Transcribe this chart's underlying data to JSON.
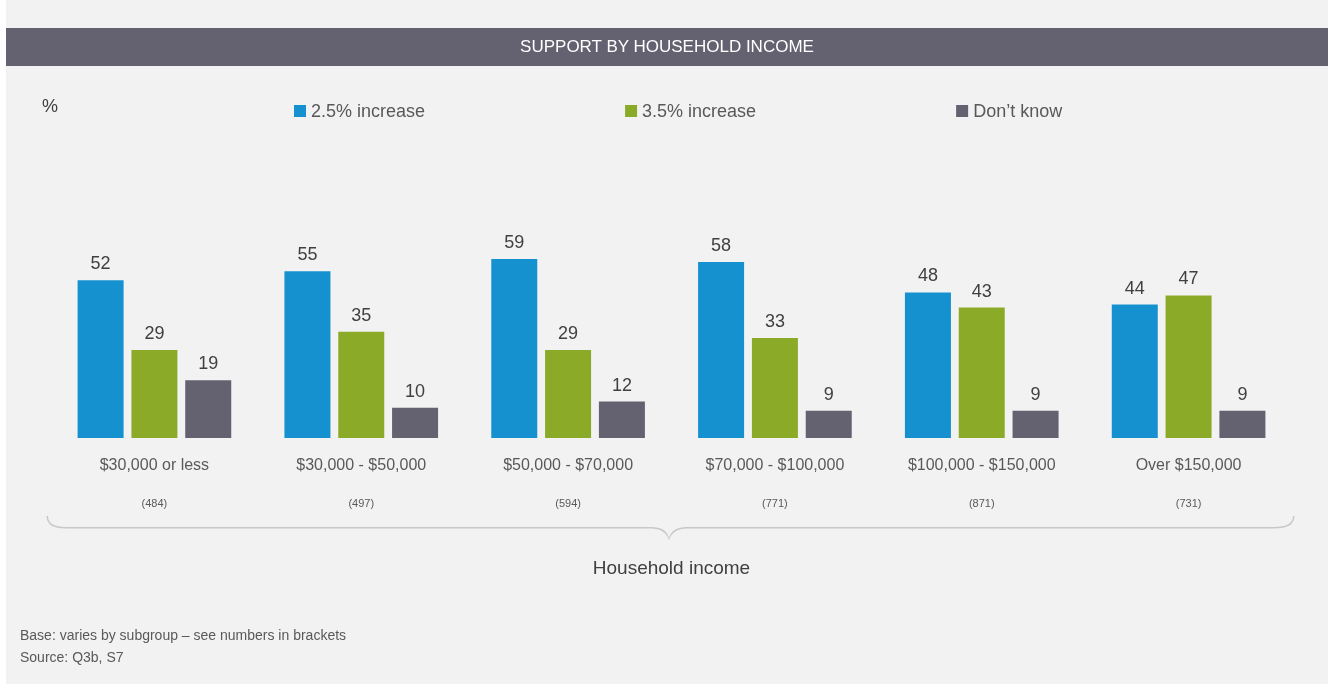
{
  "chart_data": {
    "type": "bar",
    "title": "SUPPORT BY HOUSEHOLD INCOME",
    "xlabel": "Household income",
    "categories": [
      "$30,000 or less",
      "$30,000 - $50,000",
      "$50,000 - $70,000",
      "$70,000 - $100,000",
      "$100,000 - $150,000",
      "Over $150,000"
    ],
    "series": [
      {
        "name": "2.5% increase",
        "color": "#1591cf",
        "values": [
          52,
          55,
          59,
          58,
          48,
          44
        ]
      },
      {
        "name": "3.5% increase",
        "color": "#8bab28",
        "values": [
          29,
          35,
          29,
          33,
          43,
          47
        ]
      },
      {
        "name": "Don’t know",
        "color": "#646170",
        "values": [
          19,
          10,
          12,
          9,
          9,
          9
        ]
      }
    ],
    "data_labels": true,
    "legend": "top",
    "grid": false,
    "annotations": [
      "%",
      "(484)",
      "(497)",
      "(594)",
      "(771)",
      "(871)",
      "(731)",
      "Base: varies by subgroup – see numbers in brackets",
      "Source: Q3b, S7"
    ]
  }
}
